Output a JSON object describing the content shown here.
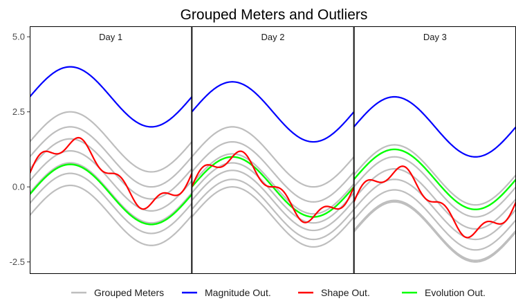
{
  "chart_data": {
    "type": "line",
    "title": "Grouped Meters and Outliers",
    "xlabel": "",
    "ylabel": "",
    "grid": false,
    "legend_position": "bottom",
    "ylim": [
      -2.9,
      5.35
    ],
    "y_ticks": [
      "-2.5",
      "0.0",
      "2.5",
      "5.0"
    ],
    "y_tick_values": [
      -2.5,
      0.0,
      2.5,
      5.0
    ],
    "colors": {
      "grouped": "#bebebe",
      "magnitude": "#0000ff",
      "shape": "#ff0000",
      "evolution": "#00ff00",
      "frame": "#000000"
    },
    "legend": [
      {
        "key": "grouped",
        "label": "Grouped Meters"
      },
      {
        "key": "magnitude",
        "label": "Magnitude Out."
      },
      {
        "key": "shape",
        "label": "Shape Out."
      },
      {
        "key": "evolution",
        "label": "Evolution Out."
      }
    ],
    "panels": [
      {
        "label": "Day 1",
        "grouped_offsets": [
          1.5,
          1.0,
          0.6,
          0.2,
          -0.2,
          -0.55,
          -0.95
        ],
        "magnitude_offset": 3.0,
        "shape_offset": 0.45,
        "shape_wiggle": 0.25,
        "evolution_offset": -0.25,
        "evolution_amplitude": 1.0
      },
      {
        "label": "Day 2",
        "grouped_offsets": [
          1.0,
          0.5,
          0.1,
          -0.2,
          -0.45,
          -0.75,
          -1.0
        ],
        "magnitude_offset": 2.5,
        "shape_offset": 0.0,
        "shape_wiggle": 0.25,
        "evolution_offset": 0.0,
        "evolution_amplitude": 1.0
      },
      {
        "label": "Day 3",
        "grouped_offsets": [
          0.4,
          0.0,
          -0.4,
          -0.75,
          -1.1,
          -1.45,
          -1.5
        ],
        "magnitude_offset": 2.0,
        "shape_offset": -0.5,
        "shape_wiggle": 0.25,
        "evolution_offset": 0.25,
        "evolution_amplitude": 1.0
      }
    ]
  }
}
